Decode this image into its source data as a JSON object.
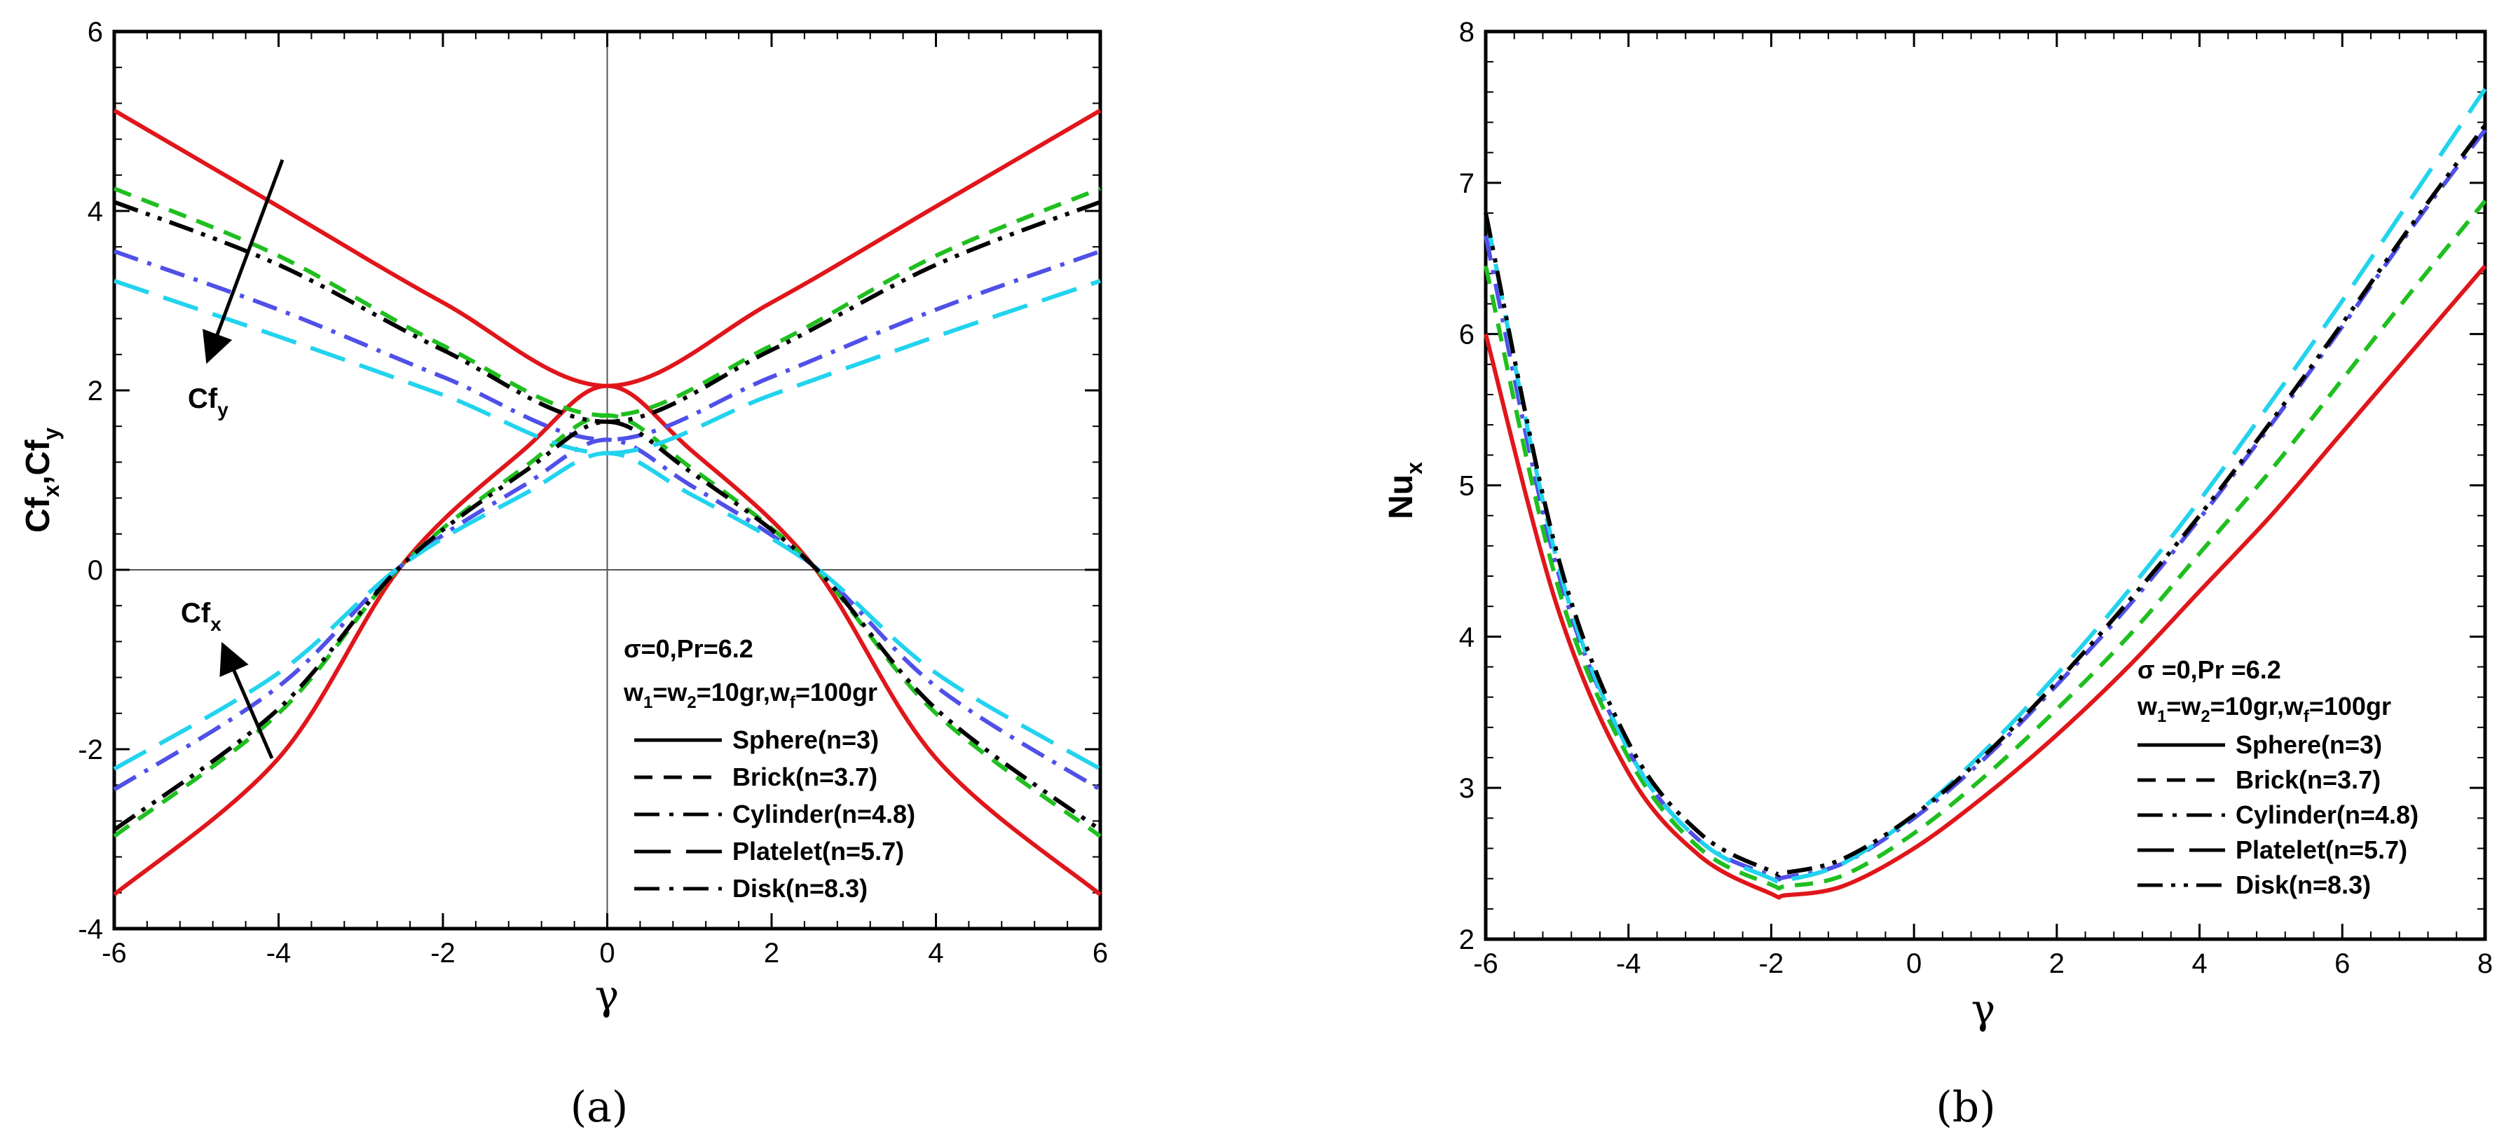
{
  "captions": {
    "left": "(a)",
    "right": "(b)"
  },
  "chart_data": [
    {
      "type": "line",
      "panel": "a",
      "xlabel": "γ",
      "ylabel": "Cf",
      "ylabel_sub1": "x",
      "ylabel_sep": ",Cf",
      "ylabel_sub2": "y",
      "xlim": [
        -6,
        6
      ],
      "ylim": [
        -4,
        6
      ],
      "xticks": [
        "-6",
        "-4",
        "-2",
        "0",
        "2",
        "4",
        "6"
      ],
      "yticks": [
        "-4",
        "-2",
        "0",
        "2",
        "4",
        "6"
      ],
      "params_line1": "σ=0,Pr=6.2",
      "params_line2": {
        "w1": "w",
        "s1": "1",
        "eq1": "=w",
        "s2": "2",
        "rest": "=10gr,w",
        "s3": "f",
        "tail": "=100gr"
      },
      "annotations": {
        "cfy": {
          "main": "Cf",
          "sub": "y"
        },
        "cfx": {
          "main": "Cf",
          "sub": "x"
        }
      },
      "legend": [
        {
          "label": "Sphere(n=3)",
          "dash": "solid"
        },
        {
          "label": "Brick(n=3.7)",
          "dash": "dash"
        },
        {
          "label": "Cylinder(n=4.8)",
          "dash": "dashdot"
        },
        {
          "label": "Platelet(n=5.7)",
          "dash": "longdash"
        },
        {
          "label": "Disk(n=8.3)",
          "dash": "dashdot"
        }
      ],
      "series": [
        {
          "name": "Sphere Cfy",
          "color": "#e0161b",
          "dash": "solid",
          "points": [
            [
              -6,
              5.12
            ],
            [
              -4,
              4.05
            ],
            [
              -2,
              2.98
            ],
            [
              0,
              2.05
            ],
            [
              2,
              2.98
            ],
            [
              4,
              4.05
            ],
            [
              6,
              5.12
            ]
          ]
        },
        {
          "name": "Sphere Cfx",
          "color": "#e0161b",
          "dash": "solid",
          "points": [
            [
              -6,
              -3.62
            ],
            [
              -4,
              -2.1
            ],
            [
              -2.5,
              0.05
            ],
            [
              -1,
              1.35
            ],
            [
              0,
              2.05
            ],
            [
              1,
              1.35
            ],
            [
              2.5,
              0.05
            ],
            [
              4,
              -2.1
            ],
            [
              6,
              -3.62
            ]
          ]
        },
        {
          "name": "Brick Cfy",
          "color": "#1fbf1f",
          "dash": "shortdash",
          "points": [
            [
              -6,
              4.25
            ],
            [
              -4,
              3.5
            ],
            [
              -2,
              2.5
            ],
            [
              0,
              1.72
            ],
            [
              2,
              2.5
            ],
            [
              4,
              3.5
            ],
            [
              6,
              4.25
            ]
          ]
        },
        {
          "name": "Brick Cfx",
          "color": "#1fbf1f",
          "dash": "shortdash",
          "points": [
            [
              -6,
              -2.97
            ],
            [
              -4,
              -1.6
            ],
            [
              -2.5,
              0.05
            ],
            [
              -1,
              1.15
            ],
            [
              0,
              1.72
            ],
            [
              1,
              1.15
            ],
            [
              2.5,
              0.05
            ],
            [
              4,
              -1.6
            ],
            [
              6,
              -2.97
            ]
          ]
        },
        {
          "name": "Cylinder Cfy",
          "color": "#5050e8",
          "dash": "dashdot",
          "points": [
            [
              -6,
              3.55
            ],
            [
              -4,
              2.9
            ],
            [
              -2,
              2.15
            ],
            [
              0,
              1.45
            ],
            [
              2,
              2.15
            ],
            [
              4,
              2.9
            ],
            [
              6,
              3.55
            ]
          ]
        },
        {
          "name": "Cylinder Cfx",
          "color": "#5050e8",
          "dash": "dashdot",
          "points": [
            [
              -6,
              -2.45
            ],
            [
              -4,
              -1.3
            ],
            [
              -2.5,
              0.05
            ],
            [
              -1,
              0.95
            ],
            [
              0,
              1.45
            ],
            [
              1,
              0.95
            ],
            [
              2.5,
              0.05
            ],
            [
              4,
              -1.3
            ],
            [
              6,
              -2.45
            ]
          ]
        },
        {
          "name": "Platelet Cfy",
          "color": "#22d3ee",
          "dash": "longdash",
          "points": [
            [
              -6,
              3.22
            ],
            [
              -4,
              2.6
            ],
            [
              -2,
              1.95
            ],
            [
              0,
              1.3
            ],
            [
              2,
              1.95
            ],
            [
              4,
              2.6
            ],
            [
              6,
              3.22
            ]
          ]
        },
        {
          "name": "Platelet Cfx",
          "color": "#22d3ee",
          "dash": "longdash",
          "points": [
            [
              -6,
              -2.22
            ],
            [
              -4,
              -1.15
            ],
            [
              -2.5,
              0.05
            ],
            [
              -1,
              0.85
            ],
            [
              0,
              1.3
            ],
            [
              1,
              0.85
            ],
            [
              2.5,
              0.05
            ],
            [
              4,
              -1.15
            ],
            [
              6,
              -2.22
            ]
          ]
        },
        {
          "name": "Disk Cfy",
          "color": "#000000",
          "dash": "dashdotdot",
          "points": [
            [
              -6,
              4.1
            ],
            [
              -4,
              3.4
            ],
            [
              -2,
              2.45
            ],
            [
              0,
              1.65
            ],
            [
              2,
              2.45
            ],
            [
              4,
              3.4
            ],
            [
              6,
              4.1
            ]
          ]
        },
        {
          "name": "Disk Cfx",
          "color": "#000000",
          "dash": "dashdotdot",
          "points": [
            [
              -6,
              -2.9
            ],
            [
              -4,
              -1.55
            ],
            [
              -2.5,
              0.05
            ],
            [
              -1,
              1.1
            ],
            [
              0,
              1.65
            ],
            [
              1,
              1.1
            ],
            [
              2.5,
              0.05
            ],
            [
              4,
              -1.55
            ],
            [
              6,
              -2.9
            ]
          ]
        }
      ]
    },
    {
      "type": "line",
      "panel": "b",
      "xlabel": "γ",
      "ylabel": "Nu",
      "ylabel_sub": "x",
      "xlim": [
        -6,
        8
      ],
      "ylim": [
        2,
        8
      ],
      "xticks": [
        "-6",
        "-4",
        "-2",
        "0",
        "2",
        "4",
        "6",
        "8"
      ],
      "yticks": [
        "2",
        "3",
        "4",
        "5",
        "6",
        "7",
        "8"
      ],
      "params_line1": "σ =0,Pr =6.2",
      "params_line2": {
        "w1": "w",
        "s1": "1",
        "eq1": "=w",
        "s2": "2",
        "rest": "=10gr,w",
        "s3": "f",
        "tail": "=100gr"
      },
      "legend": [
        {
          "label": "Sphere(n=3)",
          "dash": "solid"
        },
        {
          "label": "Brick(n=3.7)",
          "dash": "dash"
        },
        {
          "label": "Cylinder(n=4.8)",
          "dash": "dashdot"
        },
        {
          "label": "Platelet(n=5.7)",
          "dash": "longdash"
        },
        {
          "label": "Disk(n=8.3)",
          "dash": "dashdotdot"
        }
      ],
      "series": [
        {
          "name": "Sphere",
          "color": "#e0161b",
          "dash": "solid",
          "points": [
            [
              -6,
              6.0
            ],
            [
              -5,
              4.2
            ],
            [
              -4,
              3.1
            ],
            [
              -3,
              2.55
            ],
            [
              -2,
              2.3
            ],
            [
              -1.8,
              2.29
            ],
            [
              -1,
              2.35
            ],
            [
              0,
              2.6
            ],
            [
              1,
              2.95
            ],
            [
              2,
              3.35
            ],
            [
              3,
              3.8
            ],
            [
              4,
              4.3
            ],
            [
              5,
              4.8
            ],
            [
              6,
              5.35
            ],
            [
              7,
              5.9
            ],
            [
              8,
              6.45
            ]
          ]
        },
        {
          "name": "Brick",
          "color": "#1fbf1f",
          "dash": "shortdash",
          "points": [
            [
              -6,
              6.45
            ],
            [
              -5,
              4.35
            ],
            [
              -4,
              3.2
            ],
            [
              -3,
              2.6
            ],
            [
              -2,
              2.36
            ],
            [
              -1.8,
              2.35
            ],
            [
              -1,
              2.42
            ],
            [
              0,
              2.7
            ],
            [
              1,
              3.08
            ],
            [
              2,
              3.52
            ],
            [
              3,
              4.0
            ],
            [
              4,
              4.55
            ],
            [
              5,
              5.1
            ],
            [
              6,
              5.7
            ],
            [
              7,
              6.3
            ],
            [
              8,
              6.88
            ]
          ]
        },
        {
          "name": "Cylinder",
          "color": "#5050e8",
          "dash": "dashdot",
          "points": [
            [
              -6,
              6.65
            ],
            [
              -5,
              4.45
            ],
            [
              -4,
              3.25
            ],
            [
              -3,
              2.65
            ],
            [
              -2,
              2.42
            ],
            [
              -1.8,
              2.41
            ],
            [
              -1,
              2.5
            ],
            [
              0,
              2.8
            ],
            [
              1,
              3.2
            ],
            [
              2,
              3.68
            ],
            [
              3,
              4.2
            ],
            [
              4,
              4.78
            ],
            [
              5,
              5.4
            ],
            [
              6,
              6.05
            ],
            [
              7,
              6.72
            ],
            [
              8,
              7.35
            ]
          ]
        },
        {
          "name": "Platelet",
          "color": "#22d3ee",
          "dash": "longdash",
          "points": [
            [
              -6,
              6.8
            ],
            [
              -5,
              4.5
            ],
            [
              -4,
              3.25
            ],
            [
              -3,
              2.65
            ],
            [
              -2,
              2.4
            ],
            [
              -1.8,
              2.39
            ],
            [
              -1,
              2.5
            ],
            [
              0,
              2.82
            ],
            [
              1,
              3.25
            ],
            [
              2,
              3.75
            ],
            [
              3,
              4.3
            ],
            [
              4,
              4.9
            ],
            [
              5,
              5.55
            ],
            [
              6,
              6.22
            ],
            [
              7,
              6.92
            ],
            [
              8,
              7.62
            ]
          ]
        },
        {
          "name": "Disk",
          "color": "#000000",
          "dash": "dashdotdot",
          "points": [
            [
              -6,
              6.8
            ],
            [
              -5,
              4.55
            ],
            [
              -4,
              3.3
            ],
            [
              -3,
              2.7
            ],
            [
              -2,
              2.45
            ],
            [
              -1.8,
              2.44
            ],
            [
              -1,
              2.53
            ],
            [
              0,
              2.82
            ],
            [
              1,
              3.22
            ],
            [
              2,
              3.7
            ],
            [
              3,
              4.23
            ],
            [
              4,
              4.8
            ],
            [
              5,
              5.42
            ],
            [
              6,
              6.07
            ],
            [
              7,
              6.74
            ],
            [
              8,
              7.38
            ]
          ]
        }
      ]
    }
  ]
}
